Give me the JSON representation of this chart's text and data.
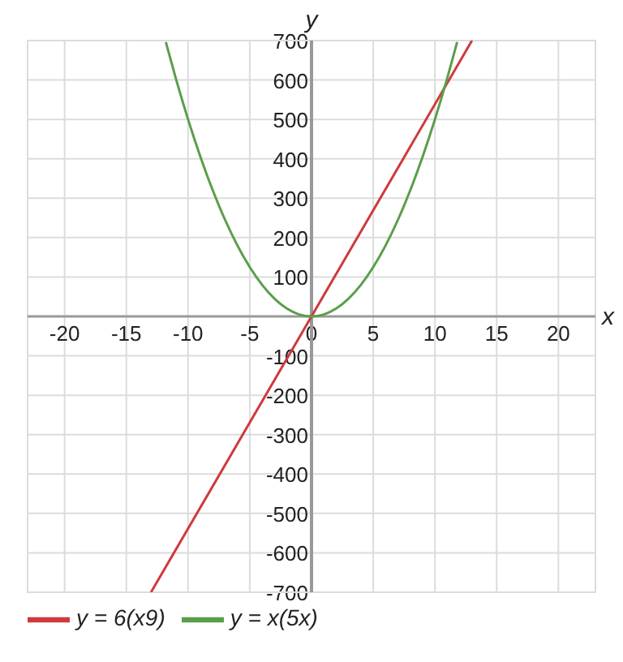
{
  "chart_data": {
    "type": "line",
    "xlabel": "x",
    "ylabel": "y",
    "xlim": [
      -23,
      23
    ],
    "ylim": [
      -700,
      700
    ],
    "xticks": [
      -20,
      -15,
      -10,
      -5,
      0,
      5,
      10,
      15,
      20
    ],
    "yticks": [
      -700,
      -600,
      -500,
      -400,
      -300,
      -200,
      -100,
      100,
      200,
      300,
      400,
      500,
      600,
      700
    ],
    "grid": true,
    "legend": "bottom left",
    "marker": "none",
    "line_style": "solid",
    "series": [
      {
        "name": "y = 6(x9)",
        "color": "#d0393b",
        "x": [
          -13,
          13
        ],
        "values": [
          -700,
          700
        ]
      },
      {
        "name": "y = x(5x)",
        "color": "#5a9e4b",
        "x": [
          -11.8,
          -11,
          -10,
          -9,
          -8,
          -7,
          -6,
          -5,
          -4,
          -3,
          -2,
          -1,
          0,
          1,
          2,
          3,
          4,
          5,
          6,
          7,
          8,
          9,
          10,
          11,
          11.8
        ],
        "values": [
          696,
          605,
          500,
          405,
          320,
          245,
          180,
          125,
          80,
          45,
          20,
          5,
          0,
          5,
          20,
          45,
          80,
          125,
          180,
          245,
          320,
          405,
          500,
          605,
          696
        ]
      }
    ]
  }
}
